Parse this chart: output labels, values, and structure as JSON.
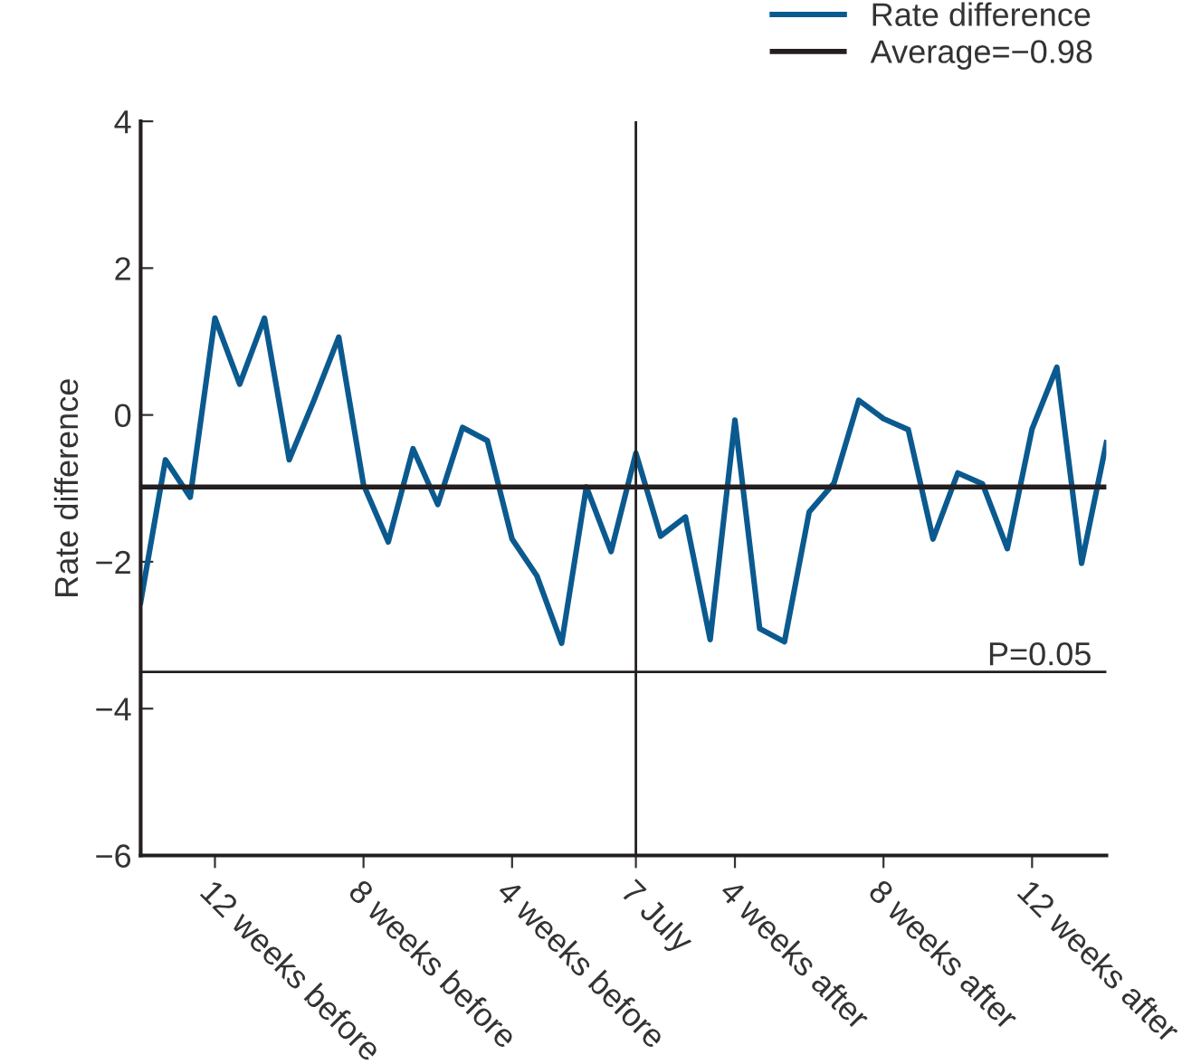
{
  "chart_data": {
    "type": "line",
    "ylabel": "Rate difference",
    "categories": [
      null,
      null,
      null,
      "12 weeks before",
      null,
      null,
      null,
      null,
      null,
      "8 weeks before",
      null,
      null,
      null,
      null,
      null,
      "4 weeks before",
      null,
      null,
      null,
      null,
      "7 July",
      null,
      null,
      null,
      "4 weeks after",
      null,
      null,
      null,
      null,
      null,
      "8 weeks after",
      null,
      null,
      null,
      null,
      null,
      "12 weeks after",
      null,
      null,
      null
    ],
    "series": [
      {
        "name": "Rate difference",
        "color": "#0b5a8f",
        "values": [
          -2.55,
          -0.61,
          -1.12,
          1.32,
          0.42,
          1.32,
          -0.61,
          0.2,
          1.06,
          -0.95,
          -1.73,
          -0.46,
          -1.22,
          -0.17,
          -0.35,
          -1.69,
          -2.19,
          -3.11,
          -0.98,
          -1.86,
          -0.52,
          -1.65,
          -1.39,
          -3.06,
          -0.07,
          -2.91,
          -3.09,
          -1.32,
          -0.93,
          0.2,
          -0.05,
          -0.2,
          -1.69,
          -0.79,
          -0.94,
          -1.82,
          -0.19,
          0.65,
          -2.02,
          -0.38
        ]
      }
    ],
    "ylim": [
      -6,
      4
    ],
    "yticks": [
      {
        "value": -6,
        "label": "−6"
      },
      {
        "value": -4,
        "label": "−4"
      },
      {
        "value": -2,
        "label": "−2"
      },
      0,
      2,
      4
    ],
    "ref_lines": [
      {
        "axis": "y",
        "value": -0.98,
        "label": "Average=−0.98",
        "color": "#231f20"
      },
      {
        "axis": "y",
        "value": -3.5,
        "color": "#231f20"
      },
      {
        "axis": "x",
        "value": "7 July",
        "color": "#231f20"
      }
    ],
    "annotations": [
      {
        "text": "P=0.05",
        "y": -3.5
      }
    ],
    "legend": "top right",
    "grid": false,
    "marker": "none",
    "line_style": "solid"
  }
}
